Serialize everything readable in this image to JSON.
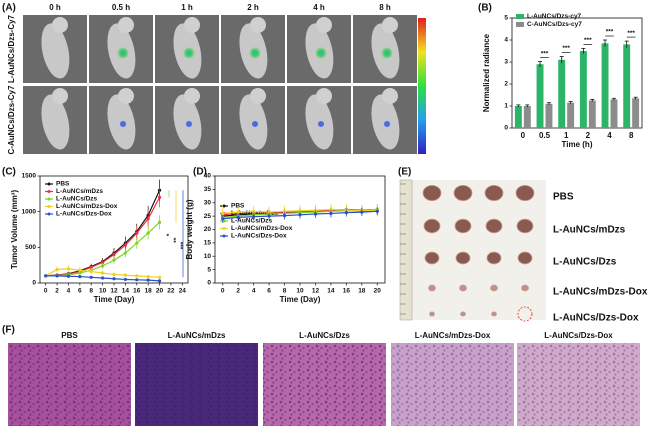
{
  "imaging": {
    "panel_label": "(A)",
    "times": [
      "0 h",
      "0.5 h",
      "1 h",
      "2 h",
      "4 h",
      "8 h"
    ],
    "rows": [
      "L-AuNCs/Dzs-Cy7",
      "C-AuNCs/Dzs-Cy7"
    ]
  },
  "chart_data": [
    {
      "panel_label": "(B)",
      "type": "bar",
      "categories": [
        "0",
        "0.5",
        "1",
        "2",
        "4",
        "8"
      ],
      "x_label": "Time (h)",
      "y_label": "Normalized radiance",
      "ylim": [
        0,
        5
      ],
      "yticks": [
        0,
        1,
        2,
        3,
        4,
        5
      ],
      "legend": "top-left",
      "series": [
        {
          "name": "L-AuNCs/Dzs-cy7",
          "color": "#2cb56a",
          "values": [
            1.0,
            2.9,
            3.1,
            3.5,
            3.85,
            3.8
          ],
          "errors": [
            0.05,
            0.12,
            0.15,
            0.12,
            0.15,
            0.15
          ]
        },
        {
          "name": "C-AuNCs/Dzs-cy7",
          "color": "#8c8c8c",
          "values": [
            1.0,
            1.1,
            1.15,
            1.25,
            1.3,
            1.35
          ],
          "errors": [
            0.05,
            0.05,
            0.05,
            0.05,
            0.05,
            0.05
          ]
        }
      ],
      "significance": [
        null,
        "***",
        "***",
        "***",
        "***",
        "***"
      ]
    },
    {
      "panel_label": "(C)",
      "type": "line",
      "x_label": "Time (Day)",
      "y_label": "Tumor Volume (mm³)",
      "x": [
        0,
        2,
        4,
        6,
        8,
        10,
        12,
        14,
        16,
        18,
        20
      ],
      "xlim": [
        -1,
        25
      ],
      "xticks": [
        0,
        2,
        4,
        6,
        8,
        10,
        12,
        14,
        16,
        18,
        20,
        22,
        24
      ],
      "ylim": [
        0,
        1500
      ],
      "yticks": [
        0,
        500,
        1000,
        1500
      ],
      "legend": "top-left",
      "series": [
        {
          "name": "PBS",
          "color": "#111111",
          "values": [
            100,
            110,
            130,
            170,
            230,
            300,
            420,
            560,
            720,
            950,
            1300
          ],
          "errors": [
            10,
            15,
            20,
            30,
            40,
            50,
            70,
            90,
            110,
            130,
            150
          ]
        },
        {
          "name": "L-AuNCs/mDzs",
          "color": "#e8323c",
          "values": [
            100,
            110,
            125,
            160,
            220,
            290,
            400,
            530,
            700,
            900,
            1200
          ],
          "errors": [
            10,
            15,
            20,
            30,
            40,
            50,
            60,
            80,
            100,
            120,
            140
          ]
        },
        {
          "name": "L-AuNCs/Dzs",
          "color": "#7ed321",
          "values": [
            100,
            105,
            115,
            140,
            180,
            240,
            320,
            420,
            560,
            700,
            850
          ],
          "errors": [
            10,
            12,
            15,
            20,
            30,
            40,
            50,
            60,
            80,
            90,
            100
          ]
        },
        {
          "name": "L-AuNCs/mDzs-Dox",
          "color": "#f0d020",
          "values": [
            100,
            190,
            200,
            180,
            160,
            140,
            120,
            110,
            100,
            90,
            80
          ],
          "errors": [
            10,
            40,
            50,
            40,
            40,
            30,
            30,
            30,
            20,
            20,
            20
          ]
        },
        {
          "name": "L-AuNCs/Dzs-Dox",
          "color": "#2a4fd0",
          "values": [
            100,
            100,
            95,
            90,
            80,
            70,
            60,
            50,
            45,
            40,
            30
          ],
          "errors": [
            10,
            10,
            10,
            10,
            10,
            10,
            10,
            10,
            10,
            10,
            10
          ]
        }
      ],
      "annotations": [
        "*",
        "**",
        "***"
      ]
    },
    {
      "panel_label": "(D)",
      "type": "line",
      "x_label": "Time (Day)",
      "y_label": "Body weight (g)",
      "x": [
        0,
        2,
        4,
        6,
        8,
        10,
        12,
        14,
        16,
        18,
        20
      ],
      "xlim": [
        -1,
        21
      ],
      "xticks": [
        0,
        2,
        4,
        6,
        8,
        10,
        12,
        14,
        16,
        18,
        20
      ],
      "ylim": [
        0,
        40
      ],
      "yticks": [
        0,
        5,
        10,
        15,
        20,
        25,
        30,
        35,
        40
      ],
      "legend": "left",
      "series": [
        {
          "name": "PBS",
          "color": "#111111",
          "values": [
            25,
            25.5,
            25.8,
            26,
            26.2,
            26.5,
            26.8,
            27,
            27.2,
            27,
            27
          ],
          "errors": [
            1.5,
            1.5,
            1.5,
            1.5,
            1.5,
            1.5,
            1.5,
            1.5,
            1.5,
            1.5,
            1.5
          ]
        },
        {
          "name": "L-AuNCs/mDzs",
          "color": "#e8323c",
          "values": [
            25.5,
            26,
            26,
            26.2,
            26.5,
            26.8,
            27,
            27.2,
            27.5,
            27.3,
            27.5
          ],
          "errors": [
            1.5,
            1.5,
            1.5,
            1.5,
            1.5,
            1.5,
            1.5,
            1.5,
            1.5,
            1.5,
            1.5
          ]
        },
        {
          "name": "L-AuNCs/Dzs",
          "color": "#7ed321",
          "values": [
            24.5,
            25,
            25.5,
            25.8,
            26,
            26.3,
            26.5,
            26.8,
            27,
            27.2,
            27.5
          ],
          "errors": [
            2,
            2,
            2,
            2,
            2,
            2,
            2,
            2,
            2,
            2,
            2
          ]
        },
        {
          "name": "L-AuNCs/mDzs-Dox",
          "color": "#f0d020",
          "values": [
            26,
            26.5,
            26.8,
            26.5,
            26.8,
            27,
            27.2,
            27.5,
            27.3,
            27,
            27.2
          ],
          "errors": [
            3,
            2,
            2,
            2,
            2,
            2,
            2,
            2,
            2,
            2,
            2
          ]
        },
        {
          "name": "L-AuNCs/Dzs-Dox",
          "color": "#2a4fd0",
          "values": [
            24,
            24.5,
            24.8,
            25,
            25.2,
            25.5,
            25.8,
            26,
            26.3,
            26.5,
            26.8
          ],
          "errors": [
            1.5,
            1.5,
            1.5,
            1.5,
            1.5,
            1.5,
            1.5,
            1.5,
            1.5,
            1.5,
            1.5
          ]
        }
      ]
    }
  ],
  "tumor_photo": {
    "panel_label": "(E)",
    "groups": [
      "PBS",
      "L-AuNCs/mDzs",
      "L-AuNCs/Dzs",
      "L-AuNCs/mDzs-Dox",
      "L-AuNCs/Dzs-Dox"
    ]
  },
  "histology": {
    "panel_label": "(F)",
    "groups": [
      "PBS",
      "L-AuNCs/mDzs",
      "L-AuNCs/Dzs",
      "L-AuNCs/mDzs-Dox",
      "L-AuNCs/Dzs-Dox"
    ]
  }
}
